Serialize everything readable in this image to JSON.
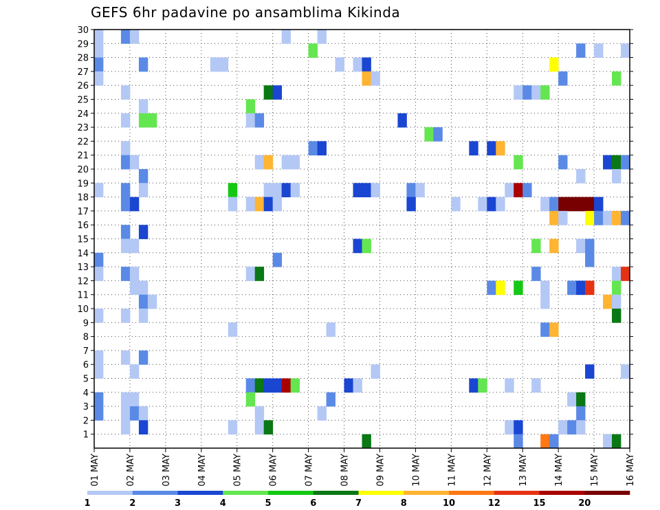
{
  "chart_data": {
    "type": "heatmap",
    "title": "GEFS 6hr padavine po ansamblima Kikinda",
    "xlabel": "",
    "ylabel": "",
    "x_tick_labels": [
      "01 MAY",
      "02 MAY",
      "03 MAY",
      "04 MAY",
      "05 MAY",
      "06 MAY",
      "07 MAY",
      "08 MAY",
      "09 MAY",
      "10 MAY",
      "11 MAY",
      "12 MAY",
      "13 MAY",
      "14 MAY",
      "15 MAY",
      "16 MAY"
    ],
    "y_tick_labels": [
      "1",
      "2",
      "3",
      "4",
      "5",
      "6",
      "7",
      "8",
      "9",
      "10",
      "11",
      "12",
      "13",
      "14",
      "15",
      "16",
      "17",
      "18",
      "19",
      "20",
      "21",
      "22",
      "23",
      "24",
      "25",
      "26",
      "27",
      "28",
      "29",
      "30"
    ],
    "x_range_steps": [
      0,
      60
    ],
    "y_range_members": [
      0,
      30
    ],
    "steps_per_day": 4,
    "grid": true,
    "colorbar": {
      "labels": [
        "1",
        "2",
        "3",
        "4",
        "5",
        "6",
        "7",
        "8",
        "10",
        "12",
        "15",
        "20"
      ],
      "colors": [
        "#b4c8f5",
        "#5a8ae6",
        "#1a46d2",
        "#64e650",
        "#14c814",
        "#0a7814",
        "#ffff00",
        "#ffb432",
        "#ff7814",
        "#e63214",
        "#aa0000",
        "#780000"
      ]
    },
    "cells": [
      [
        0,
        30,
        0
      ],
      [
        3,
        30,
        1
      ],
      [
        4,
        30,
        0
      ],
      [
        21,
        30,
        0
      ],
      [
        25,
        30,
        0
      ],
      [
        0,
        29,
        0
      ],
      [
        24,
        29,
        3
      ],
      [
        54,
        29,
        1
      ],
      [
        56,
        29,
        0
      ],
      [
        59,
        29,
        0
      ],
      [
        0,
        28,
        1
      ],
      [
        5,
        28,
        1
      ],
      [
        13,
        28,
        0
      ],
      [
        14,
        28,
        0
      ],
      [
        27,
        28,
        0
      ],
      [
        29,
        28,
        0
      ],
      [
        30,
        28,
        2
      ],
      [
        51,
        28,
        6
      ],
      [
        0,
        27,
        0
      ],
      [
        30,
        27,
        7
      ],
      [
        31,
        27,
        0
      ],
      [
        52,
        27,
        1
      ],
      [
        58,
        27,
        3
      ],
      [
        3,
        26,
        0
      ],
      [
        19,
        26,
        5
      ],
      [
        20,
        26,
        2
      ],
      [
        47,
        26,
        0
      ],
      [
        48,
        26,
        1
      ],
      [
        49,
        26,
        0
      ],
      [
        50,
        26,
        3
      ],
      [
        5,
        25,
        0
      ],
      [
        17,
        25,
        3
      ],
      [
        3,
        24,
        0
      ],
      [
        5,
        24,
        3
      ],
      [
        6,
        24,
        3
      ],
      [
        17,
        24,
        0
      ],
      [
        18,
        24,
        1
      ],
      [
        34,
        24,
        2
      ],
      [
        37,
        23,
        3
      ],
      [
        38,
        23,
        1
      ],
      [
        3,
        22,
        0
      ],
      [
        24,
        22,
        1
      ],
      [
        25,
        22,
        2
      ],
      [
        42,
        22,
        2
      ],
      [
        44,
        22,
        2
      ],
      [
        45,
        22,
        7
      ],
      [
        3,
        21,
        1
      ],
      [
        4,
        21,
        0
      ],
      [
        18,
        21,
        0
      ],
      [
        19,
        21,
        7
      ],
      [
        21,
        21,
        0
      ],
      [
        22,
        21,
        0
      ],
      [
        47,
        21,
        3
      ],
      [
        52,
        21,
        1
      ],
      [
        57,
        21,
        2
      ],
      [
        58,
        21,
        5
      ],
      [
        59,
        21,
        1
      ],
      [
        5,
        20,
        1
      ],
      [
        54,
        20,
        0
      ],
      [
        58,
        20,
        0
      ],
      [
        0,
        19,
        0
      ],
      [
        3,
        19,
        1
      ],
      [
        5,
        19,
        0
      ],
      [
        15,
        19,
        4
      ],
      [
        19,
        19,
        0
      ],
      [
        20,
        19,
        0
      ],
      [
        21,
        19,
        2
      ],
      [
        22,
        19,
        0
      ],
      [
        29,
        19,
        2
      ],
      [
        30,
        19,
        2
      ],
      [
        31,
        19,
        0
      ],
      [
        35,
        19,
        1
      ],
      [
        36,
        19,
        0
      ],
      [
        46,
        19,
        0
      ],
      [
        47,
        19,
        10
      ],
      [
        48,
        19,
        1
      ],
      [
        3,
        18,
        1
      ],
      [
        4,
        18,
        2
      ],
      [
        15,
        18,
        0
      ],
      [
        17,
        18,
        0
      ],
      [
        18,
        18,
        7
      ],
      [
        19,
        18,
        2
      ],
      [
        20,
        18,
        0
      ],
      [
        35,
        18,
        2
      ],
      [
        40,
        18,
        0
      ],
      [
        43,
        18,
        0
      ],
      [
        44,
        18,
        2
      ],
      [
        45,
        18,
        0
      ],
      [
        50,
        18,
        0
      ],
      [
        51,
        18,
        1
      ],
      [
        52,
        18,
        11
      ],
      [
        53,
        18,
        11
      ],
      [
        54,
        18,
        11
      ],
      [
        55,
        18,
        11
      ],
      [
        56,
        18,
        2
      ],
      [
        51,
        17,
        7
      ],
      [
        52,
        17,
        0
      ],
      [
        55,
        17,
        6
      ],
      [
        56,
        17,
        1
      ],
      [
        57,
        17,
        0
      ],
      [
        58,
        17,
        7
      ],
      [
        59,
        17,
        1
      ],
      [
        3,
        16,
        1
      ],
      [
        5,
        16,
        2
      ],
      [
        3,
        15,
        0
      ],
      [
        4,
        15,
        0
      ],
      [
        29,
        15,
        2
      ],
      [
        30,
        15,
        3
      ],
      [
        49,
        15,
        3
      ],
      [
        51,
        15,
        7
      ],
      [
        54,
        15,
        0
      ],
      [
        55,
        15,
        1
      ],
      [
        0,
        14,
        1
      ],
      [
        20,
        14,
        1
      ],
      [
        55,
        14,
        1
      ],
      [
        0,
        13,
        0
      ],
      [
        3,
        13,
        1
      ],
      [
        4,
        13,
        0
      ],
      [
        17,
        13,
        0
      ],
      [
        18,
        13,
        5
      ],
      [
        49,
        13,
        1
      ],
      [
        58,
        13,
        0
      ],
      [
        59,
        13,
        9
      ],
      [
        4,
        12,
        0
      ],
      [
        5,
        12,
        0
      ],
      [
        44,
        12,
        1
      ],
      [
        45,
        12,
        6
      ],
      [
        47,
        12,
        4
      ],
      [
        50,
        12,
        0
      ],
      [
        53,
        12,
        1
      ],
      [
        54,
        12,
        2
      ],
      [
        55,
        12,
        9
      ],
      [
        58,
        12,
        3
      ],
      [
        5,
        11,
        1
      ],
      [
        6,
        11,
        0
      ],
      [
        50,
        11,
        0
      ],
      [
        57,
        11,
        7
      ],
      [
        58,
        11,
        0
      ],
      [
        0,
        10,
        0
      ],
      [
        3,
        10,
        0
      ],
      [
        5,
        10,
        0
      ],
      [
        58,
        10,
        5
      ],
      [
        15,
        9,
        0
      ],
      [
        26,
        9,
        0
      ],
      [
        50,
        9,
        1
      ],
      [
        51,
        9,
        7
      ],
      [
        0,
        7,
        0
      ],
      [
        3,
        7,
        0
      ],
      [
        5,
        7,
        1
      ],
      [
        0,
        6,
        0
      ],
      [
        4,
        6,
        0
      ],
      [
        31,
        6,
        0
      ],
      [
        55,
        6,
        2
      ],
      [
        59,
        6,
        0
      ],
      [
        17,
        5,
        1
      ],
      [
        18,
        5,
        5
      ],
      [
        19,
        5,
        2
      ],
      [
        20,
        5,
        2
      ],
      [
        21,
        5,
        10
      ],
      [
        22,
        5,
        3
      ],
      [
        28,
        5,
        2
      ],
      [
        29,
        5,
        0
      ],
      [
        42,
        5,
        2
      ],
      [
        43,
        5,
        3
      ],
      [
        46,
        5,
        0
      ],
      [
        49,
        5,
        0
      ],
      [
        0,
        4,
        1
      ],
      [
        3,
        4,
        0
      ],
      [
        4,
        4,
        0
      ],
      [
        17,
        4,
        3
      ],
      [
        26,
        4,
        1
      ],
      [
        53,
        4,
        0
      ],
      [
        54,
        4,
        5
      ],
      [
        0,
        3,
        1
      ],
      [
        3,
        3,
        0
      ],
      [
        4,
        3,
        1
      ],
      [
        5,
        3,
        0
      ],
      [
        18,
        3,
        0
      ],
      [
        25,
        3,
        0
      ],
      [
        54,
        3,
        1
      ],
      [
        3,
        2,
        0
      ],
      [
        5,
        2,
        2
      ],
      [
        15,
        2,
        0
      ],
      [
        18,
        2,
        0
      ],
      [
        19,
        2,
        5
      ],
      [
        46,
        2,
        0
      ],
      [
        47,
        2,
        2
      ],
      [
        52,
        2,
        0
      ],
      [
        53,
        2,
        1
      ],
      [
        54,
        2,
        0
      ],
      [
        30,
        1,
        5
      ],
      [
        47,
        1,
        1
      ],
      [
        50,
        1,
        8
      ],
      [
        51,
        1,
        1
      ],
      [
        57,
        1,
        0
      ],
      [
        58,
        1,
        5
      ]
    ]
  }
}
